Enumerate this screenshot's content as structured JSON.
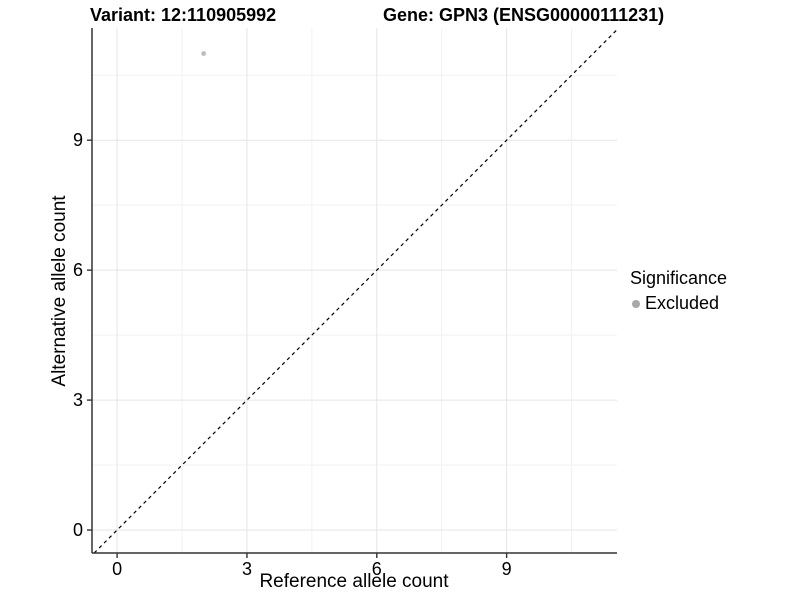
{
  "chart_data": {
    "type": "scatter",
    "title_left": "Variant: 12:110905992",
    "title_right": "Gene: GPN3 (ENSG00000111231)",
    "xlabel": "Reference allele count",
    "ylabel": "Alternative allele count",
    "xlim": [
      -0.58,
      11.55
    ],
    "ylim": [
      -0.53,
      11.59
    ],
    "x_ticks": [
      0,
      3,
      6,
      9
    ],
    "y_ticks": [
      0,
      3,
      6,
      9
    ],
    "x_minor_ticks": [
      1.5,
      4.5,
      7.5,
      10.5
    ],
    "y_minor_ticks": [
      1.5,
      4.5,
      7.5,
      10.5
    ],
    "grid": true,
    "legend_position": "right",
    "legend": {
      "title": "Significance",
      "items": [
        {
          "label": "Excluded",
          "color": "#a8a8a8"
        }
      ]
    },
    "series": [
      {
        "name": "Excluded",
        "color": "#bdbdbd",
        "points": [
          {
            "x": 2,
            "y": 11
          }
        ]
      }
    ],
    "reference_line": {
      "kind": "identity",
      "equation": "y = x",
      "style": "dashed",
      "color": "#000000"
    }
  },
  "style_colors": {
    "background": "#ffffff",
    "grid_major": "#e5e5e5",
    "grid_minor": "#f2f2f2",
    "axis": "#333333",
    "tick_text": "#000000"
  }
}
